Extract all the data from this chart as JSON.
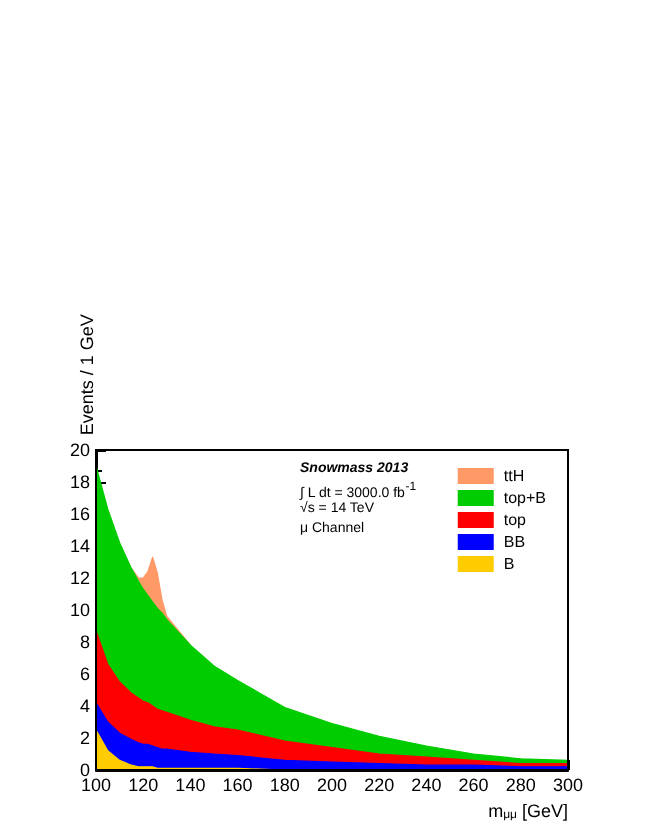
{
  "chart_data": {
    "type": "area",
    "stacked": true,
    "xlabel": "m$_{μμ}$ [GeV]",
    "ylabel": "Events / 1 GeV",
    "x": [
      100,
      105,
      110,
      115,
      118,
      120,
      122,
      124,
      126,
      128,
      130,
      140,
      150,
      160,
      180,
      200,
      220,
      240,
      260,
      280,
      300
    ],
    "series": [
      {
        "name": "B",
        "color": "#ffcc00",
        "values": [
          2.5,
          1.2,
          0.6,
          0.3,
          0.2,
          0.2,
          0.2,
          0.2,
          0.1,
          0.1,
          0.1,
          0.1,
          0.1,
          0.1,
          0,
          0,
          0,
          0,
          0,
          0,
          0
        ]
      },
      {
        "name": "BB",
        "color": "#0000ff",
        "values": [
          1.7,
          1.8,
          1.7,
          1.6,
          1.5,
          1.4,
          1.4,
          1.3,
          1.3,
          1.2,
          1.2,
          1.0,
          0.9,
          0.8,
          0.6,
          0.5,
          0.4,
          0.3,
          0.3,
          0.2,
          0.2
        ]
      },
      {
        "name": "top",
        "color": "#ff0000",
        "values": [
          4.5,
          3.6,
          3.2,
          2.9,
          2.8,
          2.7,
          2.6,
          2.5,
          2.4,
          2.4,
          2.3,
          2.0,
          1.7,
          1.6,
          1.2,
          0.9,
          0.6,
          0.5,
          0.3,
          0.2,
          0.2
        ]
      },
      {
        "name": "top+B",
        "color": "#00cc00",
        "values": [
          10.3,
          9.7,
          8.7,
          7.8,
          7.3,
          7.0,
          6.7,
          6.5,
          6.3,
          6.1,
          5.8,
          4.7,
          3.8,
          3.1,
          2.1,
          1.5,
          1.1,
          0.7,
          0.4,
          0.3,
          0.2
        ]
      },
      {
        "name": "ttH",
        "color": "#ff9966",
        "values": [
          null,
          null,
          null,
          0,
          0.2,
          0.7,
          1.5,
          2.8,
          2.2,
          0.8,
          0.2,
          0,
          null,
          null,
          null,
          null,
          null,
          null,
          null,
          null,
          null
        ]
      }
    ],
    "xlim": [
      100,
      300
    ],
    "xticks": [
      100,
      120,
      140,
      160,
      180,
      200,
      220,
      240,
      260,
      280,
      300
    ],
    "ylim": [
      0,
      20
    ],
    "yticks": [
      0,
      2,
      4,
      6,
      8,
      10,
      12,
      14,
      16,
      18,
      20
    ],
    "grid": false,
    "legend": "top right",
    "marker": "none",
    "annotations": [
      "Snowmass 2013",
      "∫ L dt = 3000.0 fb$^{-1}$",
      "√s = 14 TeV",
      "μ Channel"
    ]
  }
}
